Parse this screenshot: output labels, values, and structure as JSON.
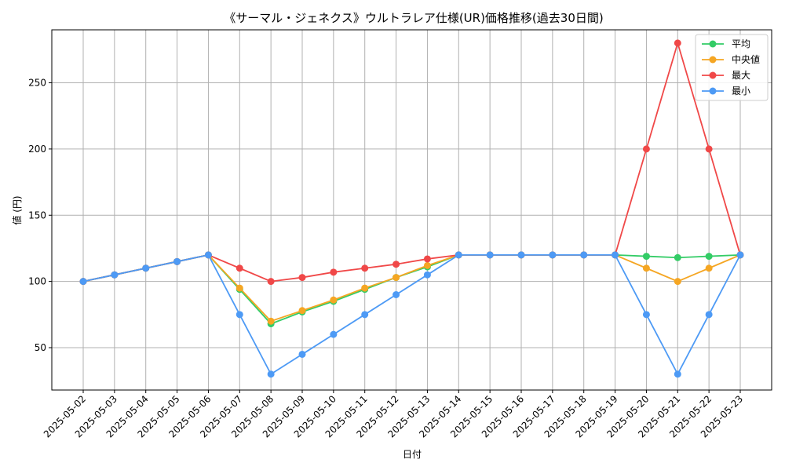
{
  "chart_data": {
    "type": "line",
    "title": "《サーマル・ジェネクス》ウルトラレア仕様(UR)価格推移(過去30日間)",
    "xlabel": "日付",
    "ylabel": "値 (円)",
    "ylim": [
      18,
      290
    ],
    "yticks": [
      50,
      100,
      150,
      200,
      250
    ],
    "grid": true,
    "legend_position": "top-right",
    "categories": [
      "2025-05-02",
      "2025-05-03",
      "2025-05-04",
      "2025-05-05",
      "2025-05-06",
      "2025-05-07",
      "2025-05-08",
      "2025-05-09",
      "2025-05-10",
      "2025-05-11",
      "2025-05-12",
      "2025-05-13",
      "2025-05-14",
      "2025-05-15",
      "2025-05-16",
      "2025-05-17",
      "2025-05-18",
      "2025-05-19",
      "2025-05-20",
      "2025-05-21",
      "2025-05-22",
      "2025-05-23"
    ],
    "series": [
      {
        "name": "平均",
        "color": "#33cc66",
        "values": [
          100,
          105,
          110,
          115,
          120,
          94,
          68,
          77,
          85,
          94,
          103,
          111,
          120,
          120,
          120,
          120,
          120,
          120,
          119,
          118,
          119,
          120
        ]
      },
      {
        "name": "中央値",
        "color": "#f5a623",
        "values": [
          100,
          105,
          110,
          115,
          120,
          95,
          70,
          78,
          86,
          95,
          103,
          112,
          120,
          120,
          120,
          120,
          120,
          120,
          110,
          100,
          110,
          120
        ]
      },
      {
        "name": "最大",
        "color": "#f04848",
        "values": [
          100,
          105,
          110,
          115,
          120,
          110,
          100,
          103,
          107,
          110,
          113,
          117,
          120,
          120,
          120,
          120,
          120,
          120,
          200,
          280,
          200,
          120
        ]
      },
      {
        "name": "最小",
        "color": "#4d9af5",
        "values": [
          100,
          105,
          110,
          115,
          120,
          75,
          30,
          45,
          60,
          75,
          90,
          105,
          120,
          120,
          120,
          120,
          120,
          120,
          75,
          30,
          75,
          120
        ]
      }
    ]
  }
}
